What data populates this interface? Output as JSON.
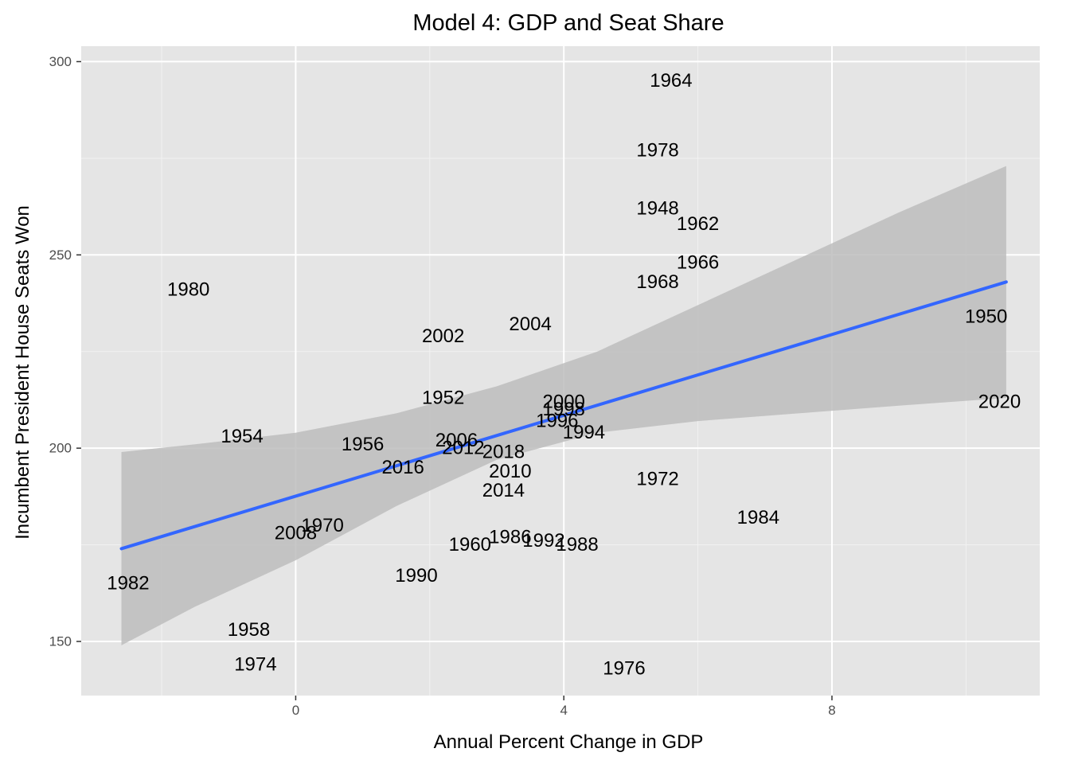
{
  "chart_data": {
    "type": "scatter",
    "title": "Model 4: GDP and Seat Share",
    "xlabel": "Annual Percent Change in GDP",
    "ylabel": "Incumbent President House Seats Won",
    "xlim": [
      -3.2,
      11.1
    ],
    "ylim": [
      136,
      304
    ],
    "x_ticks": [
      0,
      4,
      8
    ],
    "y_ticks": [
      150,
      200,
      250,
      300
    ],
    "grid": true,
    "points_shown_as": "year text labels",
    "points": [
      {
        "label": "1948",
        "x": 5.4,
        "y": 262
      },
      {
        "label": "1950",
        "x": 10.3,
        "y": 234
      },
      {
        "label": "1952",
        "x": 2.2,
        "y": 213
      },
      {
        "label": "1954",
        "x": -0.8,
        "y": 203
      },
      {
        "label": "1956",
        "x": 1.0,
        "y": 201
      },
      {
        "label": "1958",
        "x": -0.7,
        "y": 153
      },
      {
        "label": "1960",
        "x": 2.6,
        "y": 175
      },
      {
        "label": "1962",
        "x": 6.0,
        "y": 258
      },
      {
        "label": "1964",
        "x": 5.6,
        "y": 295
      },
      {
        "label": "1966",
        "x": 6.0,
        "y": 248
      },
      {
        "label": "1968",
        "x": 5.4,
        "y": 243
      },
      {
        "label": "1970",
        "x": 0.4,
        "y": 180
      },
      {
        "label": "1972",
        "x": 5.4,
        "y": 192
      },
      {
        "label": "1974",
        "x": -0.6,
        "y": 144
      },
      {
        "label": "1976",
        "x": 4.9,
        "y": 143
      },
      {
        "label": "1978",
        "x": 5.4,
        "y": 277
      },
      {
        "label": "1980",
        "x": -1.6,
        "y": 241
      },
      {
        "label": "1982",
        "x": -2.5,
        "y": 165
      },
      {
        "label": "1984",
        "x": 6.9,
        "y": 182
      },
      {
        "label": "1986",
        "x": 3.2,
        "y": 177
      },
      {
        "label": "1988",
        "x": 4.2,
        "y": 175
      },
      {
        "label": "1990",
        "x": 1.8,
        "y": 167
      },
      {
        "label": "1992",
        "x": 3.7,
        "y": 176
      },
      {
        "label": "1994",
        "x": 4.3,
        "y": 204
      },
      {
        "label": "1996",
        "x": 3.9,
        "y": 207
      },
      {
        "label": "1998",
        "x": 4.0,
        "y": 210
      },
      {
        "label": "2000",
        "x": 4.0,
        "y": 212
      },
      {
        "label": "2002",
        "x": 2.2,
        "y": 229
      },
      {
        "label": "2004",
        "x": 3.5,
        "y": 232
      },
      {
        "label": "2006",
        "x": 2.4,
        "y": 202
      },
      {
        "label": "2008",
        "x": 0.0,
        "y": 178
      },
      {
        "label": "2010",
        "x": 3.2,
        "y": 194
      },
      {
        "label": "2012",
        "x": 2.5,
        "y": 200
      },
      {
        "label": "2014",
        "x": 3.1,
        "y": 189
      },
      {
        "label": "2016",
        "x": 1.6,
        "y": 195
      },
      {
        "label": "2018",
        "x": 3.1,
        "y": 199
      },
      {
        "label": "2020",
        "x": 10.5,
        "y": 212
      }
    ],
    "regression_line": {
      "color": "#3366FF",
      "x_start": -2.6,
      "y_start": 174,
      "x_end": 10.6,
      "y_end": 243
    },
    "confidence_band": {
      "color": "#bdbdbd",
      "x": [
        -2.6,
        -1.5,
        0.0,
        1.5,
        3.0,
        4.5,
        6.0,
        7.5,
        9.0,
        10.6
      ],
      "upper": [
        199,
        201,
        204,
        209,
        216,
        225,
        237,
        249,
        261,
        273
      ],
      "lower": [
        149,
        159,
        171,
        185,
        197,
        204,
        207,
        209,
        211,
        213
      ]
    },
    "colors": {
      "panel_background": "#e5e5e5",
      "grid_major": "#ffffff",
      "grid_minor": "#f2f2f2",
      "text": "#000000",
      "tick_text": "#4d4d4d"
    }
  }
}
